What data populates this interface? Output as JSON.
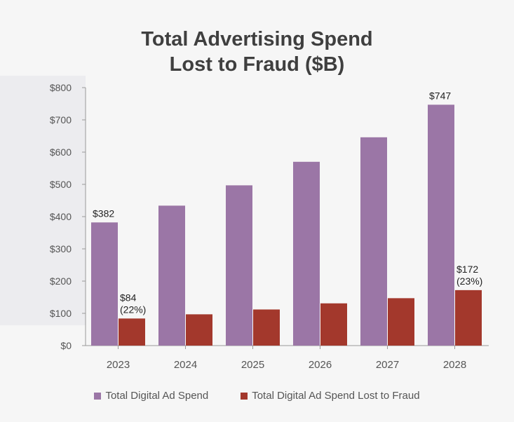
{
  "chart_data": {
    "type": "bar",
    "title": [
      "Total Advertising Spend",
      "Lost to Fraud ($B)"
    ],
    "categories": [
      "2023",
      "2024",
      "2025",
      "2026",
      "2027",
      "2028"
    ],
    "series": [
      {
        "name": "Total Digital Ad Spend",
        "color": "#9b76a6",
        "values": [
          382,
          434,
          497,
          570,
          646,
          747
        ]
      },
      {
        "name": "Total Digital Ad Spend Lost to Fraud",
        "color": "#a3382c",
        "values": [
          84,
          97,
          112,
          131,
          147,
          172
        ]
      }
    ],
    "yticks": [
      "$0",
      "$100",
      "$200",
      "$300",
      "$400",
      "$500",
      "$600",
      "$700",
      "$800"
    ],
    "ylim": [
      0,
      800
    ],
    "annotations": [
      {
        "series": 0,
        "index": 0,
        "lines": [
          "$382"
        ]
      },
      {
        "series": 1,
        "index": 0,
        "lines": [
          "$84",
          "(22%)"
        ]
      },
      {
        "series": 0,
        "index": 5,
        "lines": [
          "$747"
        ]
      },
      {
        "series": 1,
        "index": 5,
        "lines": [
          "$172",
          "(23%)"
        ]
      }
    ],
    "legend_position": "bottom",
    "grid": false
  }
}
